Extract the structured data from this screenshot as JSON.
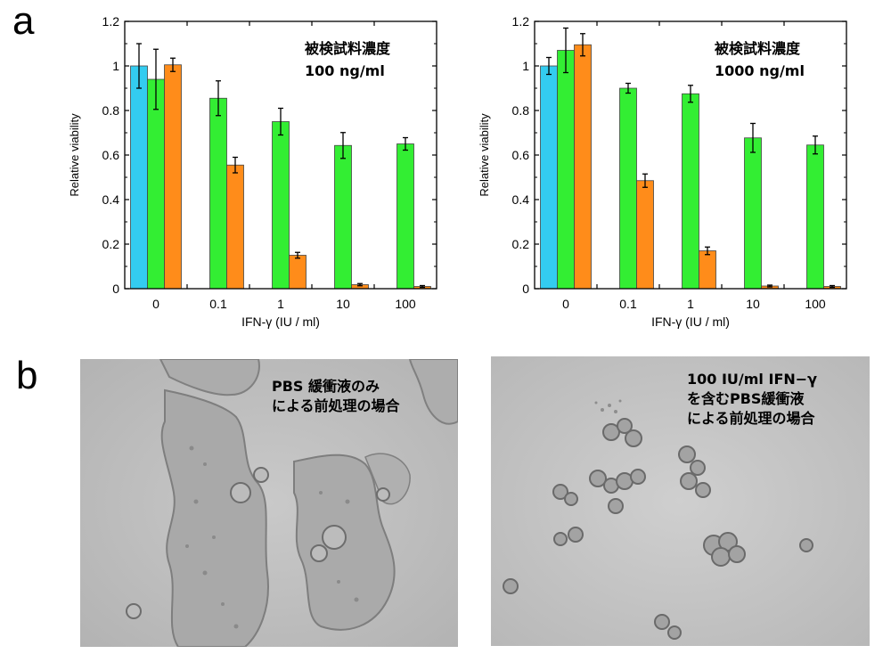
{
  "panels": {
    "a": "a",
    "b": "b"
  },
  "chart_data": [
    {
      "type": "bar",
      "categories": [
        "0",
        "0.1",
        "1",
        "10",
        "100"
      ],
      "xlabel": "IFN-γ (IU / ml)",
      "ylabel": "Relative viability",
      "ylim": [
        0,
        1.2
      ],
      "yticks": [
        "0",
        "0.2",
        "0.4",
        "0.6",
        "0.8",
        "1",
        "1.2"
      ],
      "annotation": [
        "被検試料濃度",
        "100 ng/ml"
      ],
      "colors": {
        "blue": "#33ccf0",
        "green": "#33ee33",
        "orange": "#ff8c1a"
      },
      "series": [
        {
          "color": "blue",
          "values": [
            1.0,
            null,
            null,
            null,
            null
          ],
          "errors": [
            0.1,
            null,
            null,
            null,
            null
          ]
        },
        {
          "color": "green",
          "values": [
            0.94,
            0.855,
            0.75,
            0.643,
            0.65
          ],
          "errors": [
            0.135,
            0.078,
            0.06,
            0.058,
            0.028
          ]
        },
        {
          "color": "orange",
          "values": [
            1.005,
            0.555,
            0.15,
            0.018,
            0.01
          ],
          "errors": [
            0.03,
            0.035,
            0.013,
            0.005,
            0.004
          ]
        }
      ]
    },
    {
      "type": "bar",
      "categories": [
        "0",
        "0.1",
        "1",
        "10",
        "100"
      ],
      "xlabel": "IFN-γ (IU / ml)",
      "ylabel": "Relative viability",
      "ylim": [
        0,
        1.2
      ],
      "yticks": [
        "0",
        "0.2",
        "0.4",
        "0.6",
        "0.8",
        "1",
        "1.2"
      ],
      "annotation": [
        "被検試料濃度",
        "1000 ng/ml"
      ],
      "colors": {
        "blue": "#33ccf0",
        "green": "#33ee33",
        "orange": "#ff8c1a"
      },
      "series": [
        {
          "color": "blue",
          "values": [
            1.0,
            null,
            null,
            null,
            null
          ],
          "errors": [
            0.038,
            null,
            null,
            null,
            null
          ]
        },
        {
          "color": "green",
          "values": [
            1.07,
            0.9,
            0.875,
            0.677,
            0.645
          ],
          "errors": [
            0.1,
            0.022,
            0.038,
            0.065,
            0.04
          ]
        },
        {
          "color": "orange",
          "values": [
            1.095,
            0.485,
            0.17,
            0.012,
            0.01
          ],
          "errors": [
            0.05,
            0.03,
            0.017,
            0.004,
            0.004
          ]
        }
      ]
    }
  ],
  "photos": {
    "left_caption": [
      "PBS 緩衝液のみ",
      "による前処理の場合"
    ],
    "right_caption": [
      "100 IU/ml IFN−γ",
      "を含むPBS緩衝液",
      "による前処理の場合"
    ]
  }
}
